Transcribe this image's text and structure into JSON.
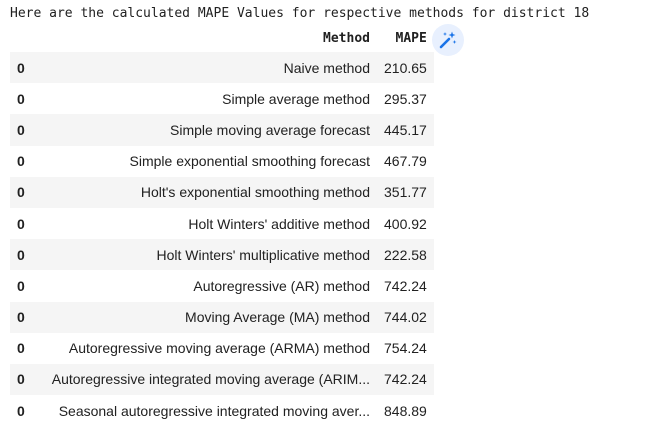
{
  "output_text": "Here are the calculated MAPE Values for respective methods for district 18",
  "table": {
    "columns": [
      "",
      "Method",
      "MAPE"
    ],
    "rows": [
      {
        "index": "0",
        "method": "Naive method",
        "mape": "210.65"
      },
      {
        "index": "0",
        "method": "Simple average method",
        "mape": "295.37"
      },
      {
        "index": "0",
        "method": "Simple moving average forecast",
        "mape": "445.17"
      },
      {
        "index": "0",
        "method": "Simple exponential smoothing forecast",
        "mape": "467.79"
      },
      {
        "index": "0",
        "method": "Holt's exponential smoothing method",
        "mape": "351.77"
      },
      {
        "index": "0",
        "method": "Holt Winters' additive method",
        "mape": "400.92"
      },
      {
        "index": "0",
        "method": "Holt Winters' multiplicative method",
        "mape": "222.58"
      },
      {
        "index": "0",
        "method": "Autoregressive (AR) method",
        "mape": "742.24"
      },
      {
        "index": "0",
        "method": "Moving Average (MA) method",
        "mape": "744.02"
      },
      {
        "index": "0",
        "method": "Autoregressive moving average (ARMA) method",
        "mape": "754.24"
      },
      {
        "index": "0",
        "method": "Autoregressive integrated moving average (ARIM...",
        "mape": "742.24"
      },
      {
        "index": "0",
        "method": "Seasonal autoregressive integrated moving aver...",
        "mape": "848.89"
      }
    ]
  },
  "icons": {
    "suggest_chart": "magic-wand-icon"
  },
  "colors": {
    "wand_bg": "#e8f0fe",
    "wand_fg": "#1a73e8",
    "stripe": "#f5f5f5"
  }
}
